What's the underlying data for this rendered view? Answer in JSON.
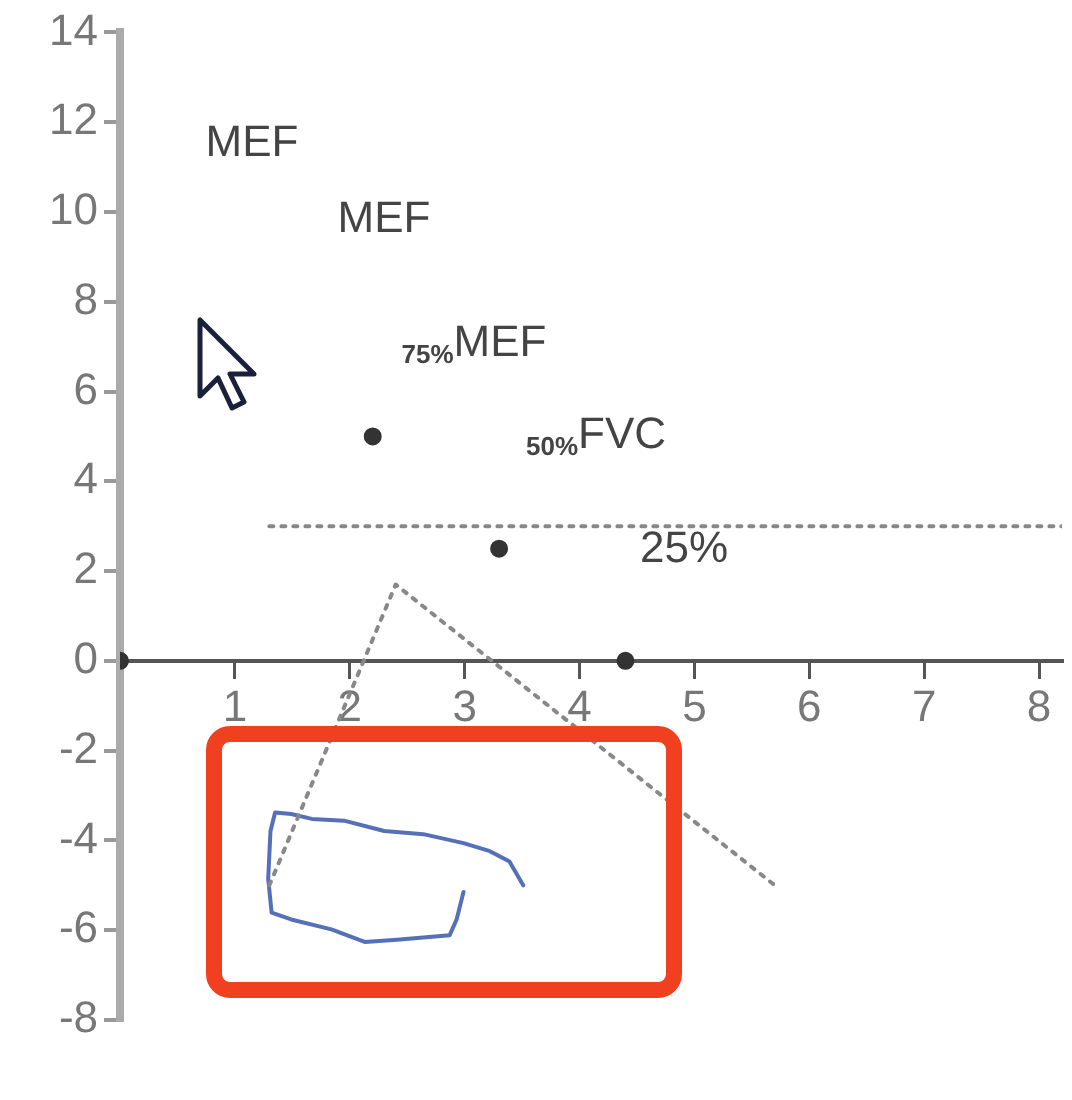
{
  "chart_data": {
    "type": "scatter",
    "xlim": [
      0,
      8.2
    ],
    "xticks": [
      1,
      2,
      3,
      4,
      5,
      6,
      7,
      8
    ],
    "ylim": [
      -8,
      14
    ],
    "yticks": [
      -8,
      -6,
      -4,
      -2,
      0,
      2,
      4,
      6,
      8,
      10,
      12,
      14
    ],
    "grid": false,
    "legend": false,
    "series": [
      {
        "color": "#333333",
        "marker": "circle",
        "x": [
          0,
          2.2,
          3.3,
          4.4
        ],
        "values": [
          0,
          5,
          2.5,
          0
        ]
      },
      {
        "type": "line",
        "color": "#888888",
        "marker": "none",
        "line_style": "dotted",
        "x": [
          1.3,
          8.2
        ],
        "values": [
          3,
          3
        ]
      },
      {
        "type": "line",
        "color": "#888888",
        "marker": "none",
        "line_style": "dotted",
        "x": [
          1.3,
          2.4,
          5.7
        ],
        "values": [
          -5,
          1.7,
          -5
        ]
      },
      {
        "type": "line",
        "color": "#5470b8",
        "marker": "none",
        "line_style": "solid",
        "x": [
          3.51,
          3.39,
          3.22,
          2.99,
          2.64,
          2.3,
          1.95,
          1.67,
          1.49,
          1.35,
          1.31,
          1.29,
          1.32,
          1.49,
          1.84,
          2.13,
          2.41,
          2.87,
          2.93,
          2.99
        ],
        "values": [
          -5,
          -4.47,
          -4.24,
          -4.06,
          -3.86,
          -3.79,
          -3.56,
          -3.52,
          -3.41,
          -3.38,
          -3.79,
          -4.85,
          -5.61,
          -5.76,
          -5.98,
          -6.26,
          -6.21,
          -6.11,
          -5.76,
          -5.15
        ]
      }
    ],
    "annotations": [
      "MEF",
      "MEF",
      "$_{75%}$MEF",
      "$_{50%}$FVC",
      "25%"
    ]
  }
}
